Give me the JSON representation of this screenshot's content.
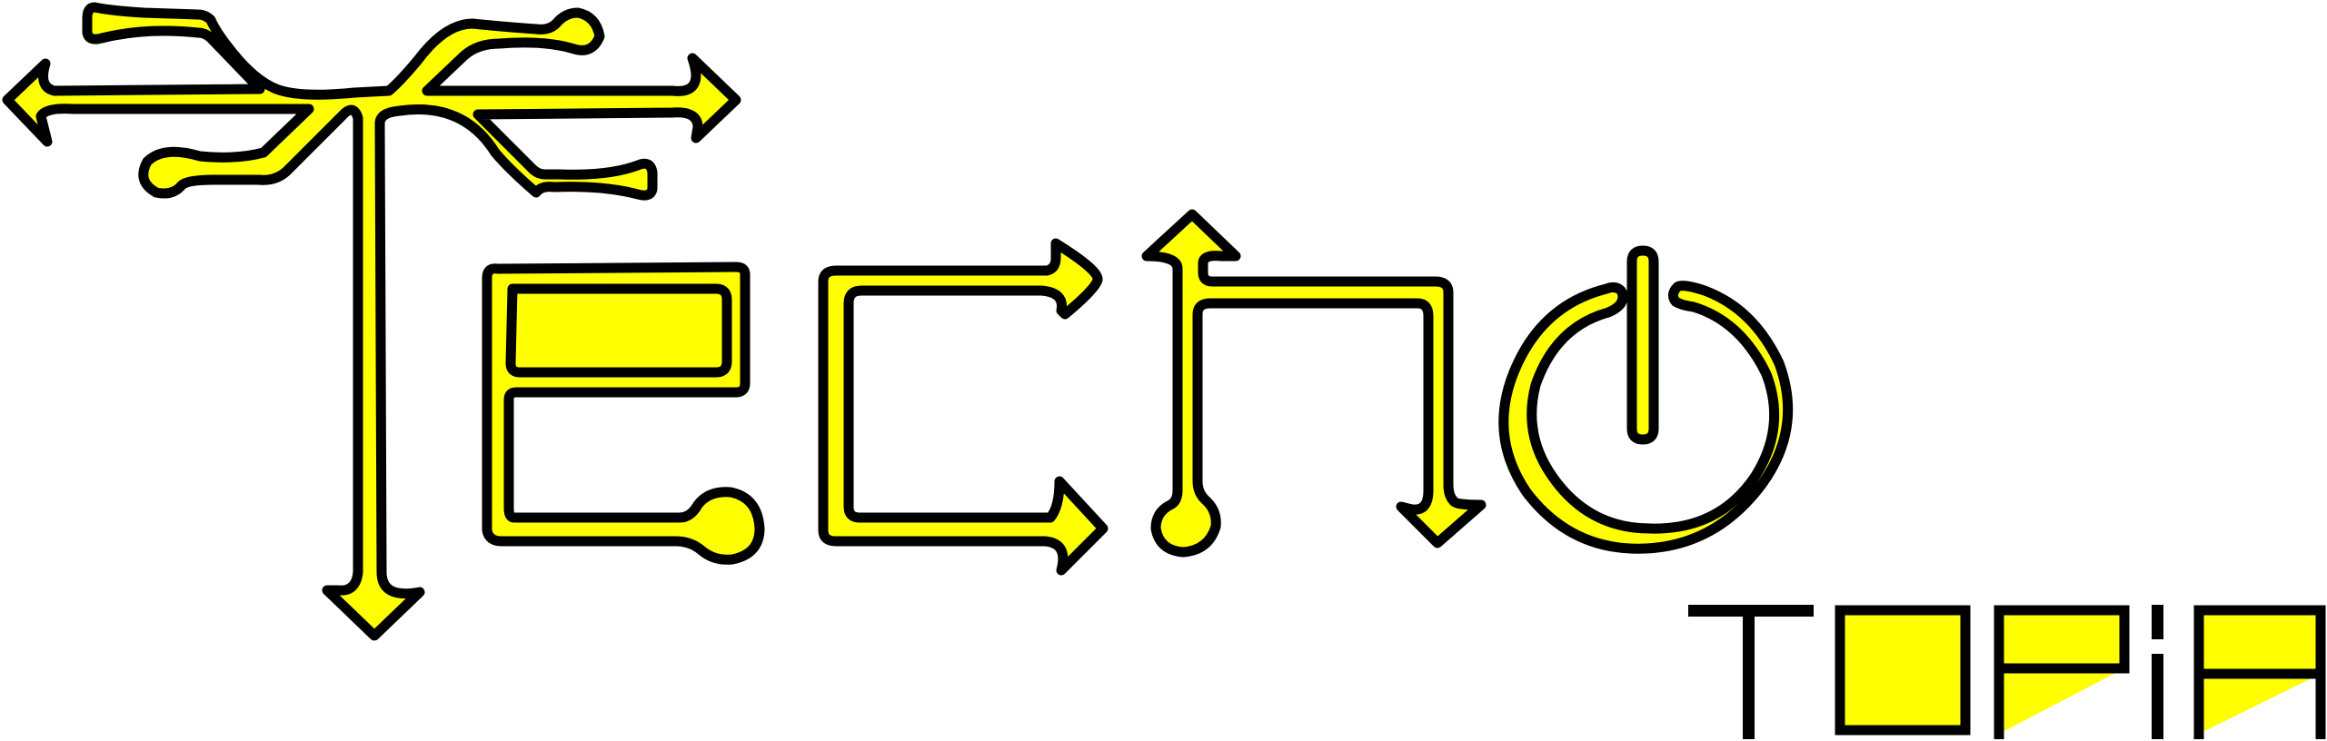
{
  "logo": {
    "main_word": "Techno",
    "sub_word": "TOPIA",
    "colors": {
      "fill": "#ffff00",
      "outline": "#000000",
      "background": "#ffffff"
    },
    "style": "circuit-trace lettering with arrowhead terminals; the letter o is drawn as a power-button symbol"
  }
}
